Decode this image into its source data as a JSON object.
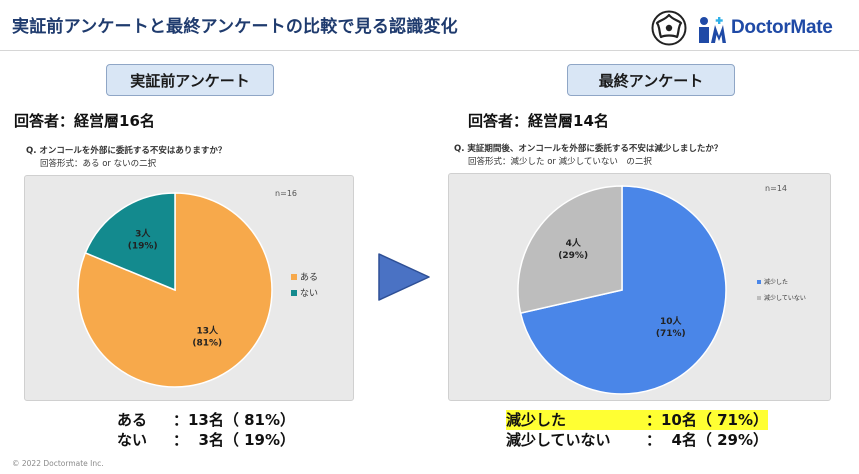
{
  "header": {
    "title": "実証前アンケートと最終アンケートの比較で見る認識変化",
    "brand_name": "DoctorMate"
  },
  "colors": {
    "title": "#1f3b6e",
    "orange": "#f7a94b",
    "teal": "#138a8e",
    "blue": "#4a86e8",
    "gray": "#bdbdbd",
    "arrow": "#4a72c4",
    "highlight": "#ffff33"
  },
  "left": {
    "section_label": "実証前アンケート",
    "respondents": "回答者：経営層16名",
    "question": "Q.  オンコールを外部に委託する不安はありますか？",
    "answer_format": "回答形式：ある or ないの二択",
    "summary": [
      {
        "label": "ある",
        "value": "：13名（ 81%）"
      },
      {
        "label": "ない",
        "value": "：  3名（ 19%）"
      }
    ]
  },
  "right": {
    "section_label": "最終アンケート",
    "respondents": "回答者：経営層14名",
    "question": "Q.  実証期間後、オンコールを外部に委託する不安は減少しましたか？",
    "answer_format": "回答形式：減少した or 減少していない　の二択",
    "summary": [
      {
        "label": "減少した",
        "value": "：10名（ 71%）"
      },
      {
        "label": "減少していない",
        "value": "：  4名（ 29%）"
      }
    ]
  },
  "chart_data": [
    {
      "type": "pie",
      "title": "実証前アンケート",
      "n_label": "n=16",
      "categories": [
        "ある",
        "ない"
      ],
      "values": [
        13,
        3
      ],
      "slice_labels": [
        [
          "13人",
          "(81%)"
        ],
        [
          "3人",
          "(19%)"
        ]
      ],
      "legend": [
        "ある",
        "ない"
      ],
      "legend_position": "right",
      "colors": [
        "#f7a94b",
        "#138a8e"
      ]
    },
    {
      "type": "pie",
      "title": "最終アンケート",
      "n_label": "n=14",
      "categories": [
        "減少した",
        "減少していない"
      ],
      "values": [
        10,
        4
      ],
      "slice_labels": [
        [
          "10人",
          "(71%)"
        ],
        [
          "4人",
          "(29%)"
        ]
      ],
      "legend": [
        "減少した",
        "減少していない"
      ],
      "legend_position": "right",
      "colors": [
        "#4a86e8",
        "#bdbdbd"
      ]
    }
  ],
  "footer": {
    "copyright": "© 2022 Doctormate Inc."
  }
}
